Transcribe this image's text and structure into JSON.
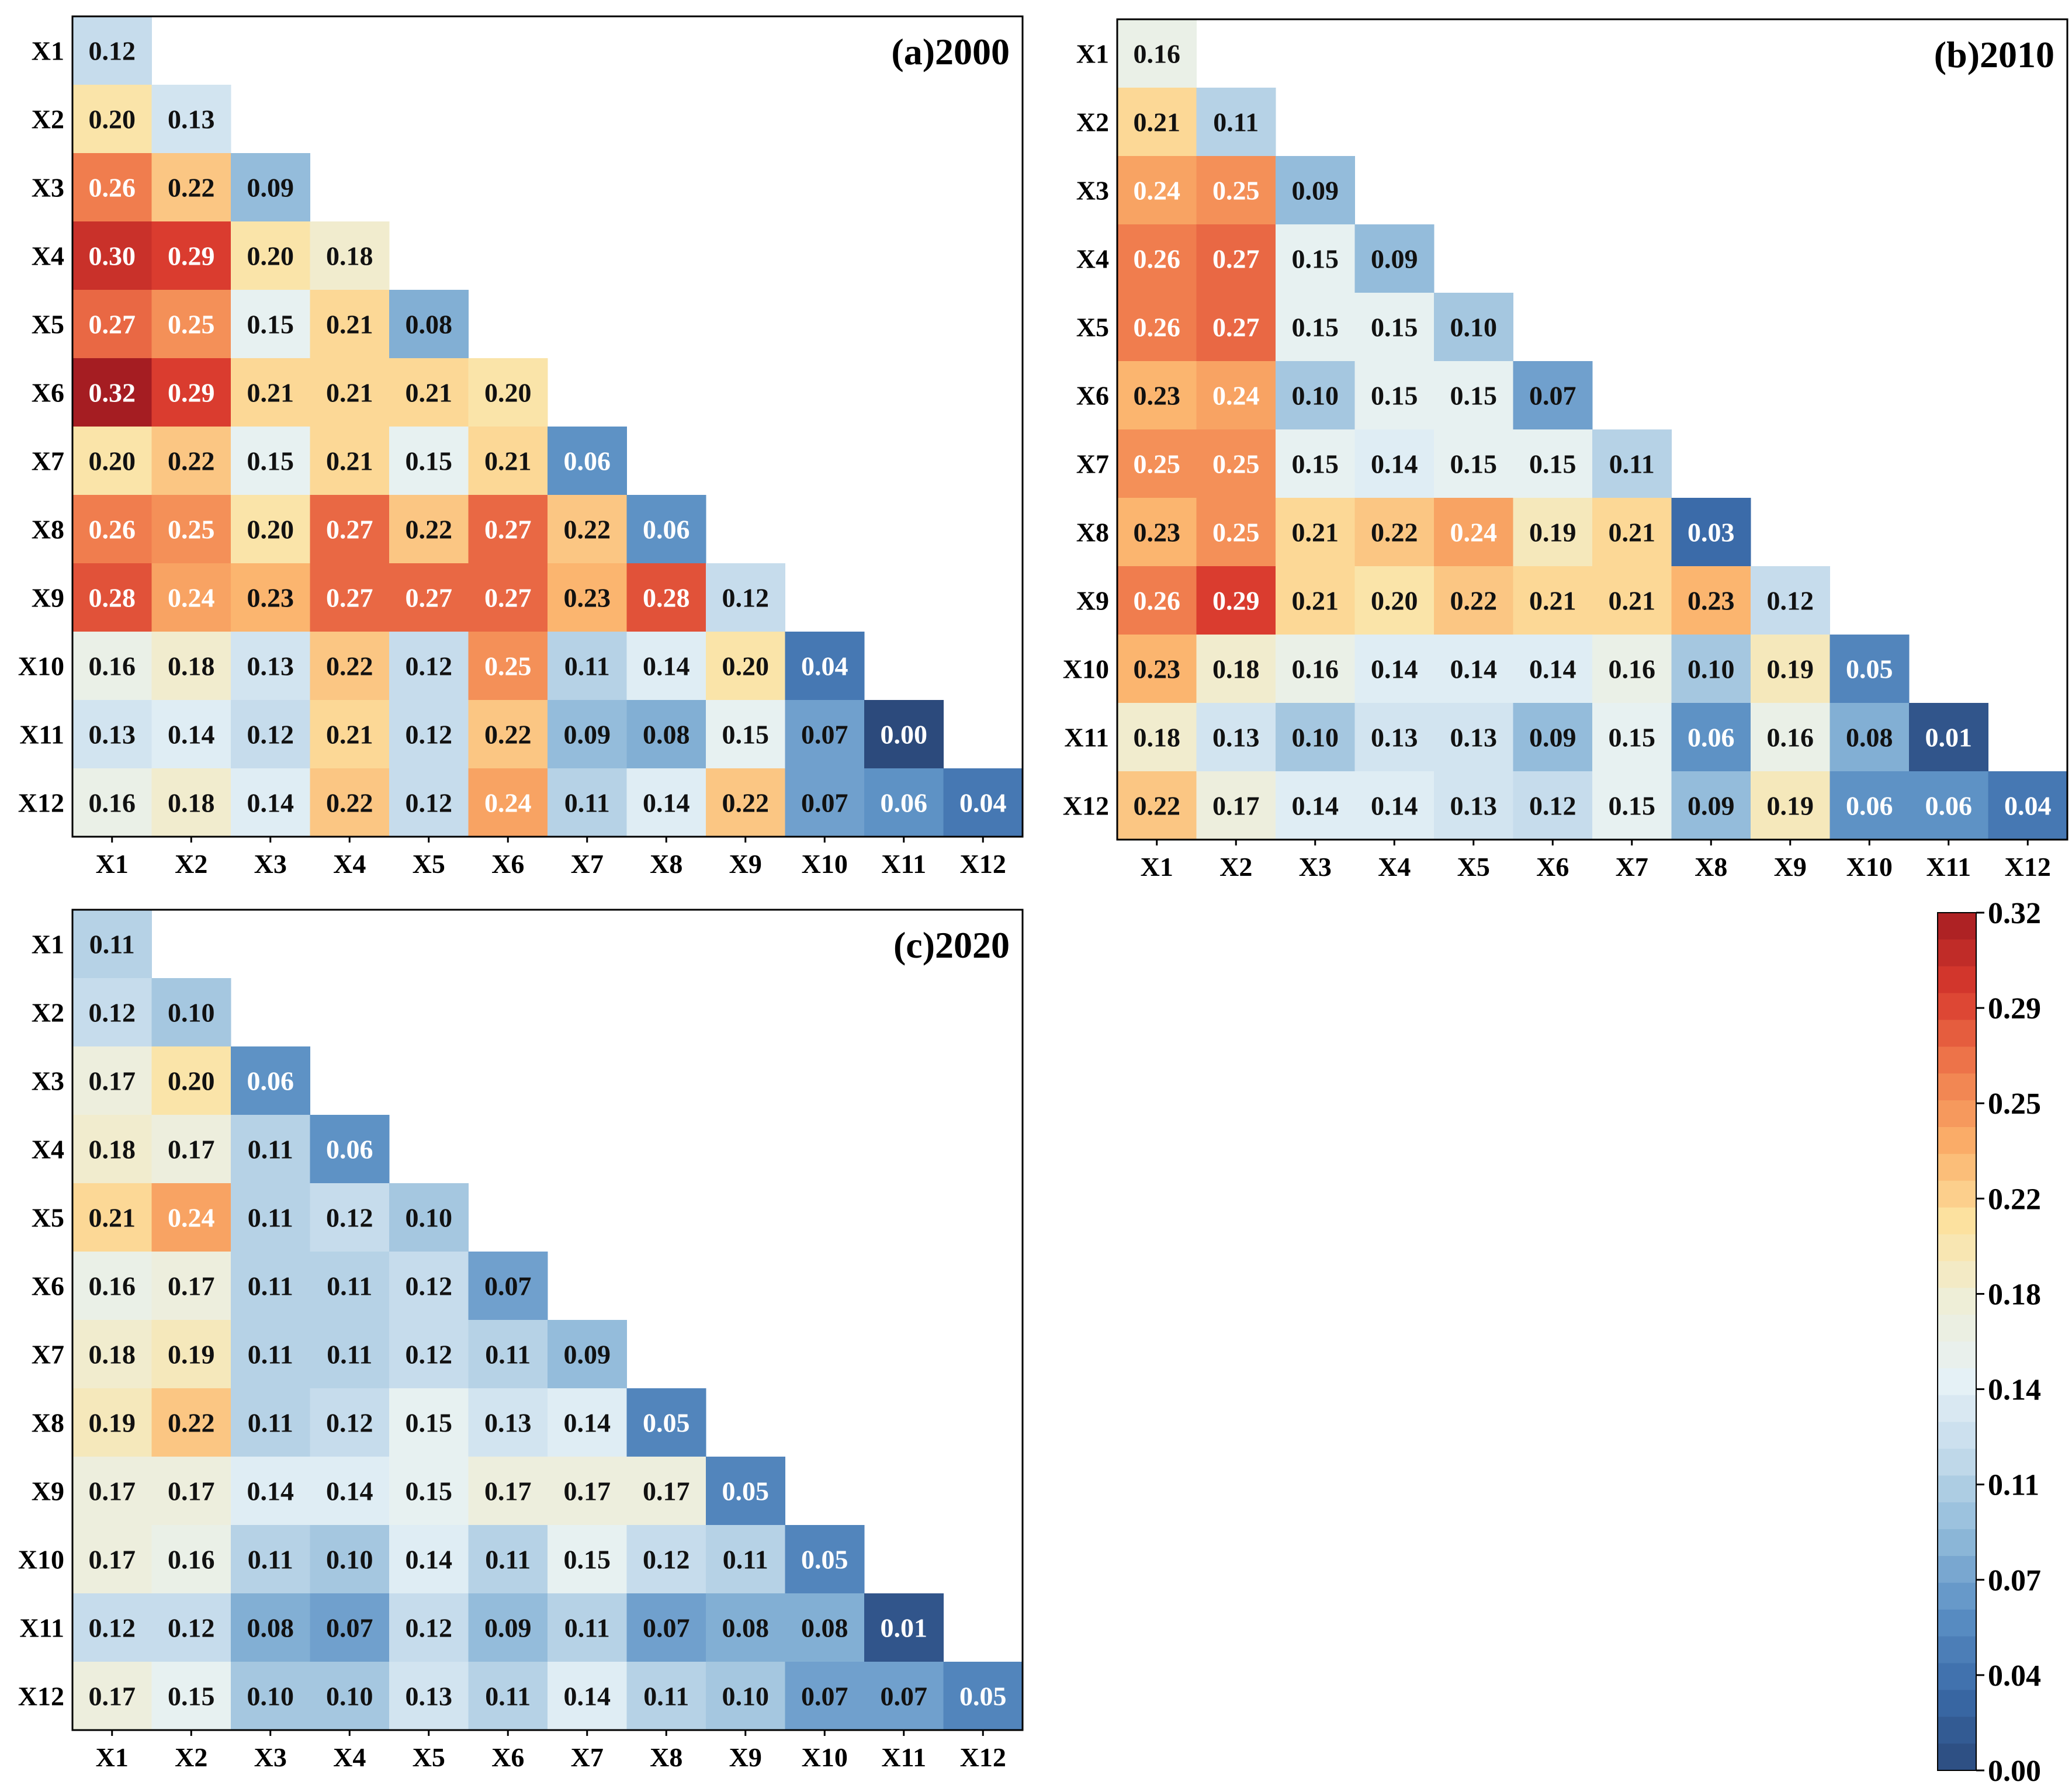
{
  "chart_data": [
    {
      "type": "heatmap",
      "title": "(a)2000",
      "row_labels": [
        "X1",
        "X2",
        "X3",
        "X4",
        "X5",
        "X6",
        "X7",
        "X8",
        "X9",
        "X10",
        "X11",
        "X12"
      ],
      "col_labels": [
        "X1",
        "X2",
        "X3",
        "X4",
        "X5",
        "X6",
        "X7",
        "X8",
        "X9",
        "X10",
        "X11",
        "X12"
      ],
      "matrix": [
        [
          "0.12"
        ],
        [
          "0.20",
          "0.13"
        ],
        [
          "0.26",
          "0.22",
          "0.09"
        ],
        [
          "0.30",
          "0.29",
          "0.20",
          "0.18"
        ],
        [
          "0.27",
          "0.25",
          "0.15",
          "0.21",
          "0.08"
        ],
        [
          "0.32",
          "0.29",
          "0.21",
          "0.21",
          "0.21",
          "0.20"
        ],
        [
          "0.20",
          "0.22",
          "0.15",
          "0.21",
          "0.15",
          "0.21",
          "0.06"
        ],
        [
          "0.26",
          "0.25",
          "0.20",
          "0.27",
          "0.22",
          "0.27",
          "0.22",
          "0.06"
        ],
        [
          "0.28",
          "0.24",
          "0.23",
          "0.27",
          "0.27",
          "0.27",
          "0.23",
          "0.28",
          "0.12"
        ],
        [
          "0.16",
          "0.18",
          "0.13",
          "0.22",
          "0.12",
          "0.25",
          "0.11",
          "0.14",
          "0.20",
          "0.04"
        ],
        [
          "0.13",
          "0.14",
          "0.12",
          "0.21",
          "0.12",
          "0.22",
          "0.09",
          "0.08",
          "0.15",
          "0.07",
          "0.00"
        ],
        [
          "0.16",
          "0.18",
          "0.14",
          "0.22",
          "0.12",
          "0.24",
          "0.11",
          "0.14",
          "0.22",
          "0.07",
          "0.06",
          "0.04"
        ]
      ]
    },
    {
      "type": "heatmap",
      "title": "(b)2010",
      "row_labels": [
        "X1",
        "X2",
        "X3",
        "X4",
        "X5",
        "X6",
        "X7",
        "X8",
        "X9",
        "X10",
        "X11",
        "X12"
      ],
      "col_labels": [
        "X1",
        "X2",
        "X3",
        "X4",
        "X5",
        "X6",
        "X7",
        "X8",
        "X9",
        "X10",
        "X11",
        "X12"
      ],
      "matrix": [
        [
          "0.16"
        ],
        [
          "0.21",
          "0.11"
        ],
        [
          "0.24",
          "0.25",
          "0.09"
        ],
        [
          "0.26",
          "0.27",
          "0.15",
          "0.09"
        ],
        [
          "0.26",
          "0.27",
          "0.15",
          "0.15",
          "0.10"
        ],
        [
          "0.23",
          "0.24",
          "0.10",
          "0.15",
          "0.15",
          "0.07"
        ],
        [
          "0.25",
          "0.25",
          "0.15",
          "0.14",
          "0.15",
          "0.15",
          "0.11"
        ],
        [
          "0.23",
          "0.25",
          "0.21",
          "0.22",
          "0.24",
          "0.19",
          "0.21",
          "0.03"
        ],
        [
          "0.26",
          "0.29",
          "0.21",
          "0.20",
          "0.22",
          "0.21",
          "0.21",
          "0.23",
          "0.12"
        ],
        [
          "0.23",
          "0.18",
          "0.16",
          "0.14",
          "0.14",
          "0.14",
          "0.16",
          "0.10",
          "0.19",
          "0.05"
        ],
        [
          "0.18",
          "0.13",
          "0.10",
          "0.13",
          "0.13",
          "0.09",
          "0.15",
          "0.06",
          "0.16",
          "0.08",
          "0.01"
        ],
        [
          "0.22",
          "0.17",
          "0.14",
          "0.14",
          "0.13",
          "0.12",
          "0.15",
          "0.09",
          "0.19",
          "0.06",
          "0.06",
          "0.04"
        ]
      ]
    },
    {
      "type": "heatmap",
      "title": "(c)2020",
      "row_labels": [
        "X1",
        "X2",
        "X3",
        "X4",
        "X5",
        "X6",
        "X7",
        "X8",
        "X9",
        "X10",
        "X11",
        "X12"
      ],
      "col_labels": [
        "X1",
        "X2",
        "X3",
        "X4",
        "X5",
        "X6",
        "X7",
        "X8",
        "X9",
        "X10",
        "X11",
        "X12"
      ],
      "matrix": [
        [
          "0.11"
        ],
        [
          "0.12",
          "0.10"
        ],
        [
          "0.17",
          "0.20",
          "0.06"
        ],
        [
          "0.18",
          "0.17",
          "0.11",
          "0.06"
        ],
        [
          "0.21",
          "0.24",
          "0.11",
          "0.12",
          "0.10"
        ],
        [
          "0.16",
          "0.17",
          "0.11",
          "0.11",
          "0.12",
          "0.07"
        ],
        [
          "0.18",
          "0.19",
          "0.11",
          "0.11",
          "0.12",
          "0.11",
          "0.09"
        ],
        [
          "0.19",
          "0.22",
          "0.11",
          "0.12",
          "0.15",
          "0.13",
          "0.14",
          "0.05"
        ],
        [
          "0.17",
          "0.17",
          "0.14",
          "0.14",
          "0.15",
          "0.17",
          "0.17",
          "0.17",
          "0.05"
        ],
        [
          "0.17",
          "0.16",
          "0.11",
          "0.10",
          "0.14",
          "0.11",
          "0.15",
          "0.12",
          "0.11",
          "0.05"
        ],
        [
          "0.12",
          "0.12",
          "0.08",
          "0.07",
          "0.12",
          "0.09",
          "0.11",
          "0.07",
          "0.08",
          "0.08",
          "0.01"
        ],
        [
          "0.17",
          "0.15",
          "0.10",
          "0.10",
          "0.13",
          "0.11",
          "0.14",
          "0.11",
          "0.10",
          "0.07",
          "0.07",
          "0.05"
        ]
      ]
    }
  ],
  "colorbar": {
    "min": 0.0,
    "max": 0.32,
    "tick_labels": [
      "0.32",
      "0.29",
      "0.25",
      "0.22",
      "0.18",
      "0.14",
      "0.11",
      "0.07",
      "0.04",
      "0.00"
    ],
    "colors": [
      "#2c4a7c",
      "#3a6aa8",
      "#5b8fc4",
      "#8fb9d9",
      "#c1d9ea",
      "#e6f1f6",
      "#eeeed8",
      "#fce3a2",
      "#fbb06a",
      "#ef7a4c",
      "#d93a2e",
      "#a51d22"
    ]
  }
}
